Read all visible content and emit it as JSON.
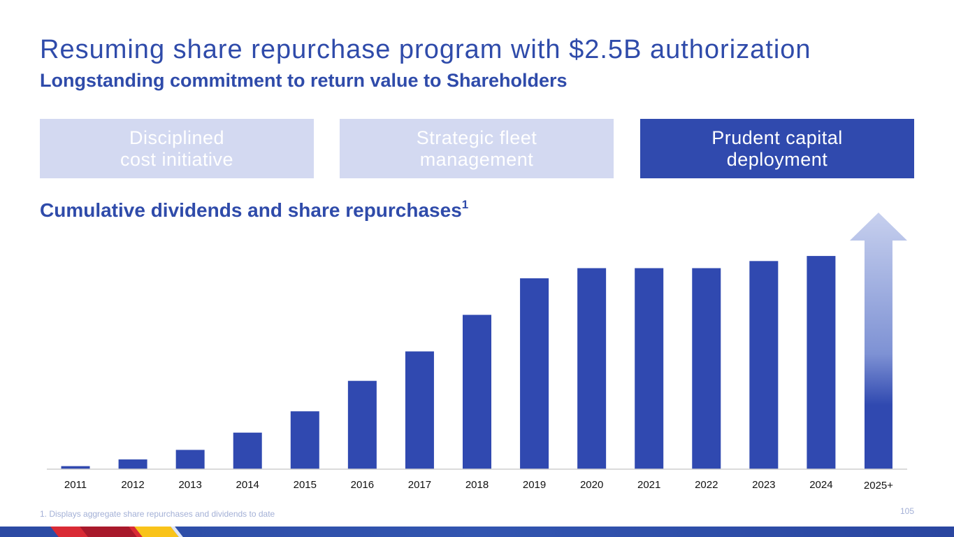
{
  "slide": {
    "title": "Resuming share repurchase program with $2.5B authorization",
    "subtitle": "Longstanding commitment to return value to Shareholders",
    "pillars": [
      {
        "label": "Disciplined\ncost initiative",
        "active": false
      },
      {
        "label": "Strategic fleet\nmanagement",
        "active": false
      },
      {
        "label": "Prudent capital\ndeployment",
        "active": true
      }
    ],
    "footnote": "1. Displays aggregate share repurchases and dividends to date",
    "page_number": "105"
  },
  "chart_data": {
    "type": "bar",
    "title": "Cumulative dividends and share repurchases",
    "title_footnote_marker": "1",
    "categories": [
      "2011",
      "2012",
      "2013",
      "2014",
      "2015",
      "2016",
      "2017",
      "2018",
      "2019",
      "2020",
      "2021",
      "2022",
      "2023",
      "2024"
    ],
    "values": [
      1.5,
      4.8,
      9.5,
      18.0,
      28.5,
      43.5,
      58.0,
      76.0,
      94.0,
      99.0,
      99.0,
      99.0,
      102.5,
      105.0
    ],
    "projection_category": "2025+",
    "projection_arrow": "upward gradient arrow",
    "ylim": [
      0,
      125
    ],
    "y_axis_labels": false,
    "grid": false,
    "legend": "none",
    "xlabel": "",
    "ylabel": "",
    "colors": {
      "bar": "#3049b0",
      "axis": "#cfcfcf",
      "arrow_top": "#c7d0ee",
      "arrow_mid": "#7e92d4",
      "arrow_bottom": "#3049b0"
    }
  },
  "colors": {
    "accent": "#2f4baa",
    "pill_light": "#d3d9f1",
    "pill_dark": "#304aae",
    "footnote": "#a3b0d6"
  }
}
